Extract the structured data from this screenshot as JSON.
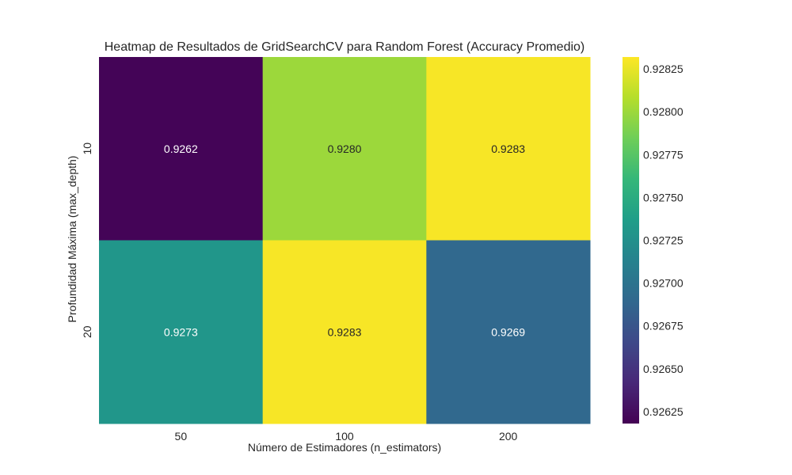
{
  "chart_data": {
    "type": "heatmap",
    "title": "Heatmap de Resultados de GridSearchCV para Random Forest (Accuracy Promedio)",
    "xlabel": "Número de Estimadores (n_estimators)",
    "ylabel": "Profundidad Máxima (max_depth)",
    "x_categories": [
      "50",
      "100",
      "200"
    ],
    "y_categories": [
      "10",
      "20"
    ],
    "values": [
      [
        0.9262,
        0.928,
        0.9283
      ],
      [
        0.9273,
        0.9283,
        0.9269
      ]
    ],
    "cell_labels": [
      [
        "0.9262",
        "0.9280",
        "0.9283"
      ],
      [
        "0.9273",
        "0.9283",
        "0.9269"
      ]
    ],
    "colormap": "viridis",
    "colorbar": {
      "vmin": 0.92618,
      "vmax": 0.92832,
      "ticks": [
        0.92625,
        0.9265,
        0.92675,
        0.927,
        0.92725,
        0.9275,
        0.92775,
        0.928,
        0.92825
      ],
      "tick_labels": [
        "0.92625",
        "0.92650",
        "0.92675",
        "0.92700",
        "0.92725",
        "0.92750",
        "0.92775",
        "0.92800",
        "0.92825"
      ]
    },
    "grid": false
  }
}
